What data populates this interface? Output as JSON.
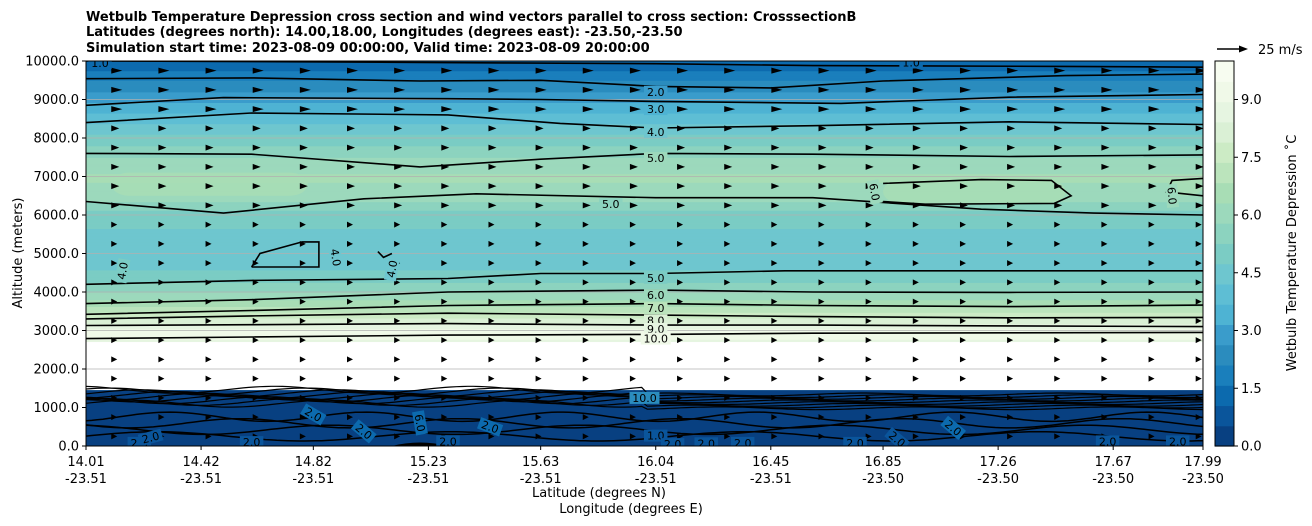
{
  "chart_data": {
    "type": "filled-contour",
    "title_lines": [
      "Wetbulb Temperature Depression cross section and wind vectors parallel to cross section: CrosssectionB",
      "Latitudes (degrees north): 14.00,18.00, Longitudes (degrees east): -23.50,-23.50",
      "Simulation start time: 2023-08-09 00:00:00, Valid time: 2023-08-09 20:00:00"
    ],
    "ylabel": "Altitude (meters)",
    "xlabel_lat": "Latitude (degrees N)",
    "xlabel_lon": "Longitude (degrees E)",
    "ylim": [
      0,
      10000
    ],
    "y_ticks": [
      "0.0",
      "1000.0",
      "2000.0",
      "3000.0",
      "4000.0",
      "5000.0",
      "6000.0",
      "7000.0",
      "8000.0",
      "9000.0",
      "10000.0"
    ],
    "y_tick_values": [
      0,
      1000,
      2000,
      3000,
      4000,
      5000,
      6000,
      7000,
      8000,
      9000,
      10000
    ],
    "x_range": [
      14.01,
      17.99
    ],
    "x_ticks": [
      {
        "lat": "14.01",
        "lon": "-23.51",
        "v": 14.01
      },
      {
        "lat": "14.42",
        "lon": "-23.51",
        "v": 14.42
      },
      {
        "lat": "14.82",
        "lon": "-23.51",
        "v": 14.82
      },
      {
        "lat": "15.23",
        "lon": "-23.51",
        "v": 15.23
      },
      {
        "lat": "15.63",
        "lon": "-23.51",
        "v": 15.63
      },
      {
        "lat": "16.04",
        "lon": "-23.51",
        "v": 16.04
      },
      {
        "lat": "16.45",
        "lon": "-23.51",
        "v": 16.45
      },
      {
        "lat": "16.85",
        "lon": "-23.50",
        "v": 16.85
      },
      {
        "lat": "17.26",
        "lon": "-23.50",
        "v": 17.26
      },
      {
        "lat": "17.67",
        "lon": "-23.50",
        "v": 17.67
      },
      {
        "lat": "17.99",
        "lon": "-23.50",
        "v": 17.99
      }
    ],
    "colorbar": {
      "label": "Wetbulb Temperature Depression $^\\circ$C",
      "label_display": "Wetbulb Temperature Depression ˚C",
      "range": [
        0,
        10
      ],
      "tick_labels": [
        "0.0",
        "1.5",
        "3.0",
        "4.5",
        "6.0",
        "7.5",
        "9.0"
      ],
      "tick_values": [
        0,
        1.5,
        3.0,
        4.5,
        6.0,
        7.5,
        9.0
      ],
      "colors": [
        "#084081",
        "#0a559b",
        "#0c6aae",
        "#1a7fbc",
        "#2b8cbe",
        "#3a9ccb",
        "#4eb3d3",
        "#5ebed4",
        "#6ec6cf",
        "#7bccc4",
        "#8cd3bf",
        "#9cd9bc",
        "#a8ddb5",
        "#bbe4bc",
        "#ccebc5",
        "#daf0d5",
        "#e6f5e1",
        "#f0f9e8",
        "#f7fcf0"
      ]
    },
    "reference_vector_label": "25 m/s",
    "temperature_profile": [
      {
        "alt": 0,
        "v": 0.8
      },
      {
        "alt": 600,
        "v": 1.2
      },
      {
        "alt": 1100,
        "v": 1.6
      },
      {
        "alt": 1400,
        "v": 2.8
      },
      {
        "alt": 2900,
        "v": 9.5
      },
      {
        "alt": 3150,
        "v": 8.5
      },
      {
        "alt": 3400,
        "v": 7.6
      },
      {
        "alt": 3700,
        "v": 6.6
      },
      {
        "alt": 4100,
        "v": 5.5
      },
      {
        "alt": 4600,
        "v": 4.7
      },
      {
        "alt": 5200,
        "v": 4.4
      },
      {
        "alt": 6000,
        "v": 5.0
      },
      {
        "alt": 6500,
        "v": 6.1
      },
      {
        "alt": 7000,
        "v": 6.4
      },
      {
        "alt": 7500,
        "v": 5.8
      },
      {
        "alt": 8000,
        "v": 4.9
      },
      {
        "alt": 8500,
        "v": 4.0
      },
      {
        "alt": 9000,
        "v": 3.0
      },
      {
        "alt": 9500,
        "v": 2.1
      },
      {
        "alt": 10000,
        "v": 1.1
      }
    ],
    "missing_layer_alt": [
      1450,
      2700
    ],
    "contour_lines": [
      {
        "level": "1.0",
        "points": [
          [
            14.01,
            10000
          ],
          [
            14.5,
            9990
          ],
          [
            15.5,
            9950
          ],
          [
            16.04,
            9930
          ],
          [
            16.6,
            9880
          ],
          [
            17.5,
            9860
          ],
          [
            17.99,
            9840
          ]
        ]
      },
      {
        "level": "2.0",
        "points": [
          [
            14.01,
            9540
          ],
          [
            14.6,
            9560
          ],
          [
            15.2,
            9480
          ],
          [
            15.63,
            9500
          ],
          [
            16.04,
            9340
          ],
          [
            16.45,
            9300
          ],
          [
            16.85,
            9480
          ],
          [
            17.5,
            9620
          ],
          [
            17.99,
            9660
          ]
        ]
      },
      {
        "level": "3.0",
        "points": [
          [
            14.01,
            8850
          ],
          [
            14.5,
            9050
          ],
          [
            15.3,
            9020
          ],
          [
            15.63,
            9000
          ],
          [
            16.04,
            8950
          ],
          [
            16.7,
            8900
          ],
          [
            17.3,
            9060
          ],
          [
            17.99,
            9130
          ]
        ]
      },
      {
        "level": "4.0",
        "points": [
          [
            14.01,
            8400
          ],
          [
            14.6,
            8650
          ],
          [
            15.3,
            8600
          ],
          [
            15.7,
            8380
          ],
          [
            16.04,
            8260
          ],
          [
            16.6,
            8320
          ],
          [
            17.3,
            8420
          ],
          [
            17.99,
            8350
          ]
        ]
      },
      {
        "level": "5.0",
        "points": [
          [
            14.01,
            7600
          ],
          [
            14.6,
            7580
          ],
          [
            15.2,
            7250
          ],
          [
            15.63,
            7450
          ],
          [
            16.04,
            7600
          ],
          [
            16.6,
            7580
          ],
          [
            17.3,
            7520
          ],
          [
            17.99,
            7560
          ]
        ]
      },
      {
        "level": "5.0",
        "points": [
          [
            14.01,
            6350
          ],
          [
            14.5,
            6050
          ],
          [
            15.0,
            6420
          ],
          [
            15.4,
            6550
          ],
          [
            16.04,
            6450
          ],
          [
            16.6,
            6450
          ],
          [
            17.2,
            6150
          ],
          [
            17.6,
            6050
          ],
          [
            17.99,
            6000
          ]
        ]
      },
      {
        "level": "5.0",
        "points": [
          [
            14.01,
            4200
          ],
          [
            14.6,
            4300
          ],
          [
            15.3,
            4350
          ],
          [
            15.63,
            4480
          ],
          [
            16.04,
            4480
          ],
          [
            16.5,
            4550
          ],
          [
            17.3,
            4550
          ],
          [
            17.99,
            4550
          ]
        ]
      },
      {
        "level": "6.0",
        "points": [
          [
            14.01,
            3700
          ],
          [
            14.6,
            3800
          ],
          [
            15.3,
            4000
          ],
          [
            16.04,
            4050
          ],
          [
            16.6,
            4000
          ],
          [
            17.3,
            3990
          ],
          [
            17.99,
            4000
          ]
        ]
      },
      {
        "level": "7.0",
        "points": [
          [
            14.01,
            3420
          ],
          [
            14.6,
            3520
          ],
          [
            15.3,
            3650
          ],
          [
            16.04,
            3700
          ],
          [
            16.6,
            3650
          ],
          [
            17.3,
            3620
          ],
          [
            17.99,
            3660
          ]
        ]
      },
      {
        "level": "8.0",
        "points": [
          [
            14.01,
            3300
          ],
          [
            14.6,
            3380
          ],
          [
            15.3,
            3450
          ],
          [
            16.04,
            3400
          ],
          [
            16.6,
            3360
          ],
          [
            17.3,
            3330
          ],
          [
            17.99,
            3340
          ]
        ]
      },
      {
        "level": "9.0",
        "points": [
          [
            14.01,
            3130
          ],
          [
            14.6,
            3150
          ],
          [
            15.3,
            3180
          ],
          [
            16.04,
            3140
          ],
          [
            16.6,
            3140
          ],
          [
            17.3,
            3120
          ],
          [
            17.99,
            3100
          ]
        ]
      },
      {
        "level": "10.0",
        "points": [
          [
            14.01,
            2790
          ],
          [
            14.6,
            2830
          ],
          [
            15.3,
            2880
          ],
          [
            16.04,
            2900
          ],
          [
            16.6,
            2930
          ],
          [
            17.3,
            2940
          ],
          [
            17.99,
            2950
          ]
        ]
      },
      {
        "level": "6.0",
        "points": [
          [
            16.85,
            6820
          ],
          [
            17.2,
            6920
          ],
          [
            17.45,
            6900
          ],
          [
            17.52,
            6500
          ],
          [
            17.46,
            6300
          ],
          [
            17.0,
            6280
          ],
          [
            16.85,
            6350
          ]
        ]
      },
      {
        "level": "6.0",
        "points": [
          [
            17.99,
            6950
          ],
          [
            17.88,
            6900
          ],
          [
            17.86,
            6600
          ],
          [
            17.99,
            6500
          ]
        ]
      },
      {
        "level": "4.0",
        "points": [
          [
            14.6,
            4650
          ],
          [
            14.63,
            5000
          ],
          [
            14.78,
            5300
          ],
          [
            14.84,
            5300
          ],
          [
            14.84,
            4650
          ],
          [
            14.6,
            4650
          ]
        ]
      },
      {
        "level": "4.0",
        "points": [
          [
            15.05,
            5050
          ],
          [
            15.07,
            4900
          ],
          [
            15.1,
            5000
          ]
        ]
      }
    ],
    "contour_labels": [
      {
        "text": "1.0",
        "x": 14.06,
        "alt": 9950,
        "rot": 0
      },
      {
        "text": "1.0",
        "x": 16.95,
        "alt": 9960,
        "rot": 0
      },
      {
        "text": "2.0",
        "x": 16.04,
        "alt": 9200,
        "rot": 0
      },
      {
        "text": "3.0",
        "x": 16.04,
        "alt": 8750,
        "rot": 0
      },
      {
        "text": "4.0",
        "x": 16.04,
        "alt": 8160,
        "rot": 0
      },
      {
        "text": "5.0",
        "x": 16.04,
        "alt": 7480,
        "rot": 0
      },
      {
        "text": "5.0",
        "x": 15.88,
        "alt": 6280,
        "rot": 0
      },
      {
        "text": "5.0",
        "x": 16.04,
        "alt": 4370,
        "rot": 0
      },
      {
        "text": "6.0",
        "x": 16.04,
        "alt": 3920,
        "rot": 0
      },
      {
        "text": "7.0",
        "x": 16.04,
        "alt": 3580,
        "rot": 0
      },
      {
        "text": "8.0",
        "x": 16.04,
        "alt": 3260,
        "rot": 0
      },
      {
        "text": "9.0",
        "x": 16.04,
        "alt": 3040,
        "rot": 0
      },
      {
        "text": "10.0",
        "x": 16.04,
        "alt": 2790,
        "rot": 0
      },
      {
        "text": "4.0",
        "x": 14.14,
        "alt": 4550,
        "rot": -80
      },
      {
        "text": "4.0",
        "x": 14.9,
        "alt": 4900,
        "rot": 80
      },
      {
        "text": "4.0",
        "x": 15.1,
        "alt": 4600,
        "rot": -80
      },
      {
        "text": "6.0",
        "x": 16.82,
        "alt": 6600,
        "rot": 80
      },
      {
        "text": "6.0",
        "x": 17.88,
        "alt": 6500,
        "rot": 85
      },
      {
        "text": "10.0",
        "x": 16.0,
        "alt": 1250,
        "rot": 0
      },
      {
        "text": "1.0",
        "x": 16.04,
        "alt": 270,
        "rot": 0
      },
      {
        "text": "2.0",
        "x": 14.2,
        "alt": 80,
        "rot": 0
      },
      {
        "text": "2.0",
        "x": 14.24,
        "alt": 220,
        "rot": -15
      },
      {
        "text": "2.0",
        "x": 14.6,
        "alt": 100,
        "rot": 0
      },
      {
        "text": "2.0",
        "x": 14.82,
        "alt": 820,
        "rot": 30
      },
      {
        "text": "2.0",
        "x": 15.0,
        "alt": 380,
        "rot": 40
      },
      {
        "text": "6.0",
        "x": 15.2,
        "alt": 600,
        "rot": 80
      },
      {
        "text": "2.0",
        "x": 15.3,
        "alt": 120,
        "rot": 0
      },
      {
        "text": "2.0",
        "x": 15.45,
        "alt": 500,
        "rot": 20
      },
      {
        "text": "2.0",
        "x": 16.1,
        "alt": 50,
        "rot": 0
      },
      {
        "text": "2.0",
        "x": 16.22,
        "alt": 70,
        "rot": 0
      },
      {
        "text": "2.0",
        "x": 16.35,
        "alt": 80,
        "rot": 0
      },
      {
        "text": "2.0",
        "x": 16.75,
        "alt": 80,
        "rot": 0
      },
      {
        "text": "2.0",
        "x": 16.9,
        "alt": 180,
        "rot": 40
      },
      {
        "text": "2.0",
        "x": 17.1,
        "alt": 470,
        "rot": 40
      },
      {
        "text": "2.0",
        "x": 17.65,
        "alt": 120,
        "rot": 0
      },
      {
        "text": "2.0",
        "x": 17.9,
        "alt": 120,
        "rot": 0
      }
    ]
  }
}
